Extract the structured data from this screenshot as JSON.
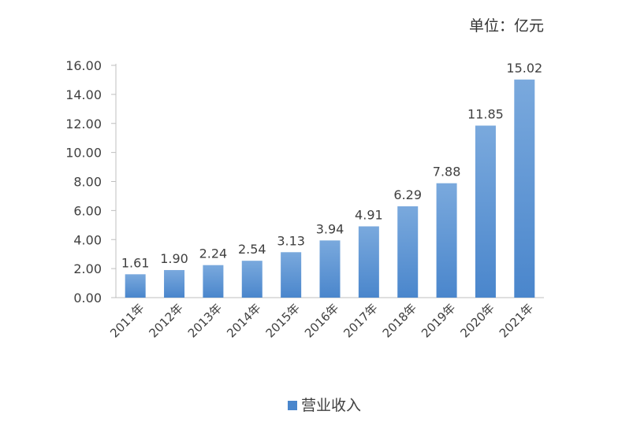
{
  "chart_data": {
    "type": "bar",
    "unit_label": "单位：亿元",
    "categories": [
      "2011年",
      "2012年",
      "2013年",
      "2014年",
      "2015年",
      "2016年",
      "2017年",
      "2018年",
      "2019年",
      "2020年",
      "2021年"
    ],
    "series": [
      {
        "name": "营业收入",
        "values": [
          1.61,
          1.9,
          2.24,
          2.54,
          3.13,
          3.94,
          4.91,
          6.29,
          7.88,
          11.85,
          15.02
        ],
        "data_labels": [
          "1.61",
          "1.90",
          "2.24",
          "2.54",
          "3.13",
          "3.94",
          "4.91",
          "6.29",
          "7.88",
          "11.85",
          "15.02"
        ]
      }
    ],
    "ylim": [
      0,
      16
    ],
    "y_ticks": [
      "0.00",
      "2.00",
      "4.00",
      "6.00",
      "8.00",
      "10.00",
      "12.00",
      "14.00",
      "16.00"
    ],
    "grid": false,
    "legend_position": "bottom",
    "colors": {
      "bar_top": "#7aa9dd",
      "bar_bottom": "#4a86cc",
      "axis": "#bfbfbf",
      "text": "#404040"
    }
  }
}
